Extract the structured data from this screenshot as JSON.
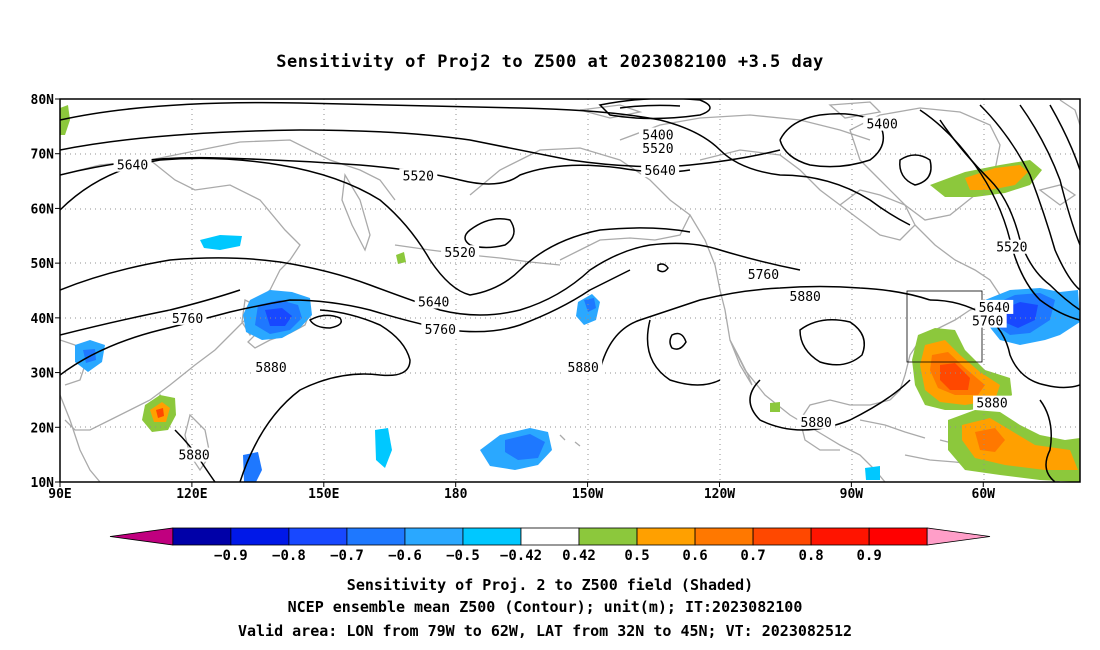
{
  "title": "Sensitivity of Proj2 to Z500 at 2023082100 +3.5 day",
  "lat_ticks": [
    {
      "value": 80,
      "label": "80N"
    },
    {
      "value": 70,
      "label": "70N"
    },
    {
      "value": 60,
      "label": "60N"
    },
    {
      "value": 50,
      "label": "50N"
    },
    {
      "value": 40,
      "label": "40N"
    },
    {
      "value": 30,
      "label": "30N"
    },
    {
      "value": 20,
      "label": "20N"
    },
    {
      "value": 10,
      "label": "10N"
    }
  ],
  "lon_ticks": [
    {
      "value": 90,
      "label": "90E"
    },
    {
      "value": 120,
      "label": "120E"
    },
    {
      "value": 150,
      "label": "150E"
    },
    {
      "value": 180,
      "label": "180"
    },
    {
      "value": 210,
      "label": "150W"
    },
    {
      "value": 240,
      "label": "120W"
    },
    {
      "value": 270,
      "label": "90W"
    },
    {
      "value": 300,
      "label": "60W"
    }
  ],
  "map_extent": {
    "lon": [
      90,
      322
    ],
    "lat": [
      10,
      80
    ]
  },
  "contour_labels": [
    {
      "text": "5400",
      "lon": 226,
      "lat": 73.5
    },
    {
      "text": "5400",
      "lon": 277,
      "lat": 75.5
    },
    {
      "text": "5520",
      "lon": 226,
      "lat": 71
    },
    {
      "text": "5520",
      "lon": 171.5,
      "lat": 66
    },
    {
      "text": "5520",
      "lon": 181,
      "lat": 52
    },
    {
      "text": "5520",
      "lon": 306.5,
      "lat": 53
    },
    {
      "text": "5640",
      "lon": 106.5,
      "lat": 68
    },
    {
      "text": "5640",
      "lon": 226.5,
      "lat": 67
    },
    {
      "text": "5640",
      "lon": 175,
      "lat": 43
    },
    {
      "text": "5640",
      "lon": 302.5,
      "lat": 42
    },
    {
      "text": "5760",
      "lon": 119,
      "lat": 40
    },
    {
      "text": "5760",
      "lon": 176.5,
      "lat": 38
    },
    {
      "text": "5760",
      "lon": 250,
      "lat": 48
    },
    {
      "text": "5760",
      "lon": 301,
      "lat": 39.5
    },
    {
      "text": "5880",
      "lon": 138,
      "lat": 31
    },
    {
      "text": "5880",
      "lon": 120.5,
      "lat": 15
    },
    {
      "text": "5880",
      "lon": 209,
      "lat": 31
    },
    {
      "text": "5880",
      "lon": 259.5,
      "lat": 44
    },
    {
      "text": "5880",
      "lon": 262,
      "lat": 21
    },
    {
      "text": "5880",
      "lon": 302,
      "lat": 24.5
    }
  ],
  "valid_box": {
    "lon": [
      79,
      62
    ],
    "lat": [
      32,
      45
    ]
  },
  "colorbar": {
    "colors": [
      "#c0007f",
      "#0000a8",
      "#0018e8",
      "#1848ff",
      "#1e78ff",
      "#2aa8ff",
      "#00c8ff",
      "#ffffff",
      "#8cc83c",
      "#ffa000",
      "#ff7800",
      "#ff4800",
      "#ff1400",
      "#ff0000",
      "#ff9ec8"
    ],
    "labels": [
      "−0.9",
      "−0.8",
      "−0.7",
      "−0.6",
      "−0.5",
      "−0.42",
      "0.42",
      "0.5",
      "0.6",
      "0.7",
      "0.8",
      "0.9"
    ]
  },
  "captions": {
    "line1": "Sensitivity of Proj. 2 to Z500 field (Shaded)",
    "line2": "NCEP ensemble mean Z500 (Contour); unit(m); IT:2023082100",
    "line3": "Valid area: LON from 79W to 62W, LAT from 32N to 45N; VT: 2023082512"
  },
  "colors": {
    "land": "#aaaaaa",
    "grid": "#909090",
    "contour": "#000000"
  }
}
